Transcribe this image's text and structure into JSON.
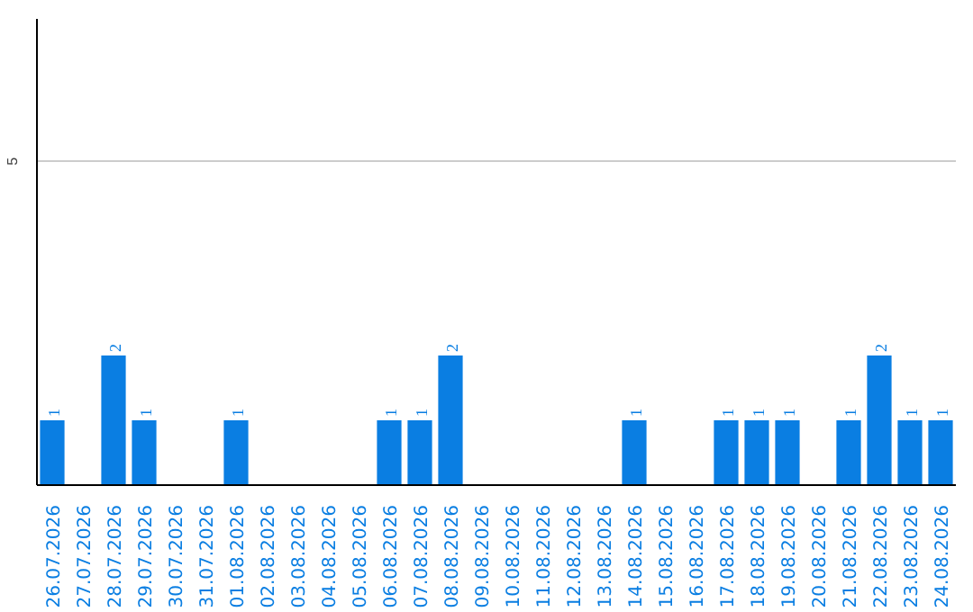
{
  "chart_data": {
    "type": "bar",
    "categories": [
      "26.07.2026",
      "27.07.2026",
      "28.07.2026",
      "29.07.2026",
      "30.07.2026",
      "31.07.2026",
      "01.08.2026",
      "02.08.2026",
      "03.08.2026",
      "04.08.2026",
      "05.08.2026",
      "06.08.2026",
      "07.08.2026",
      "08.08.2026",
      "09.08.2026",
      "10.08.2026",
      "11.08.2026",
      "12.08.2026",
      "13.08.2026",
      "14.08.2026",
      "15.08.2026",
      "16.08.2026",
      "17.08.2026",
      "18.08.2026",
      "19.08.2026",
      "20.08.2026",
      "21.08.2026",
      "22.08.2026",
      "23.08.2026",
      "24.08.2026"
    ],
    "values": [
      1,
      0,
      2,
      1,
      0,
      0,
      1,
      0,
      0,
      0,
      0,
      1,
      1,
      2,
      0,
      0,
      0,
      0,
      0,
      1,
      0,
      0,
      1,
      1,
      1,
      0,
      1,
      2,
      1,
      1
    ],
    "value_labels": [
      "1",
      null,
      "2",
      "1",
      null,
      null,
      "1",
      null,
      null,
      null,
      null,
      "1",
      "1",
      "2",
      null,
      null,
      null,
      null,
      null,
      "1",
      null,
      null,
      "1",
      "1",
      "1",
      null,
      "1",
      "2",
      "1",
      "1"
    ],
    "color": "#0a7ee2",
    "ylim": [
      0,
      7.2
    ],
    "yticks": [
      5
    ],
    "grid": "y"
  }
}
